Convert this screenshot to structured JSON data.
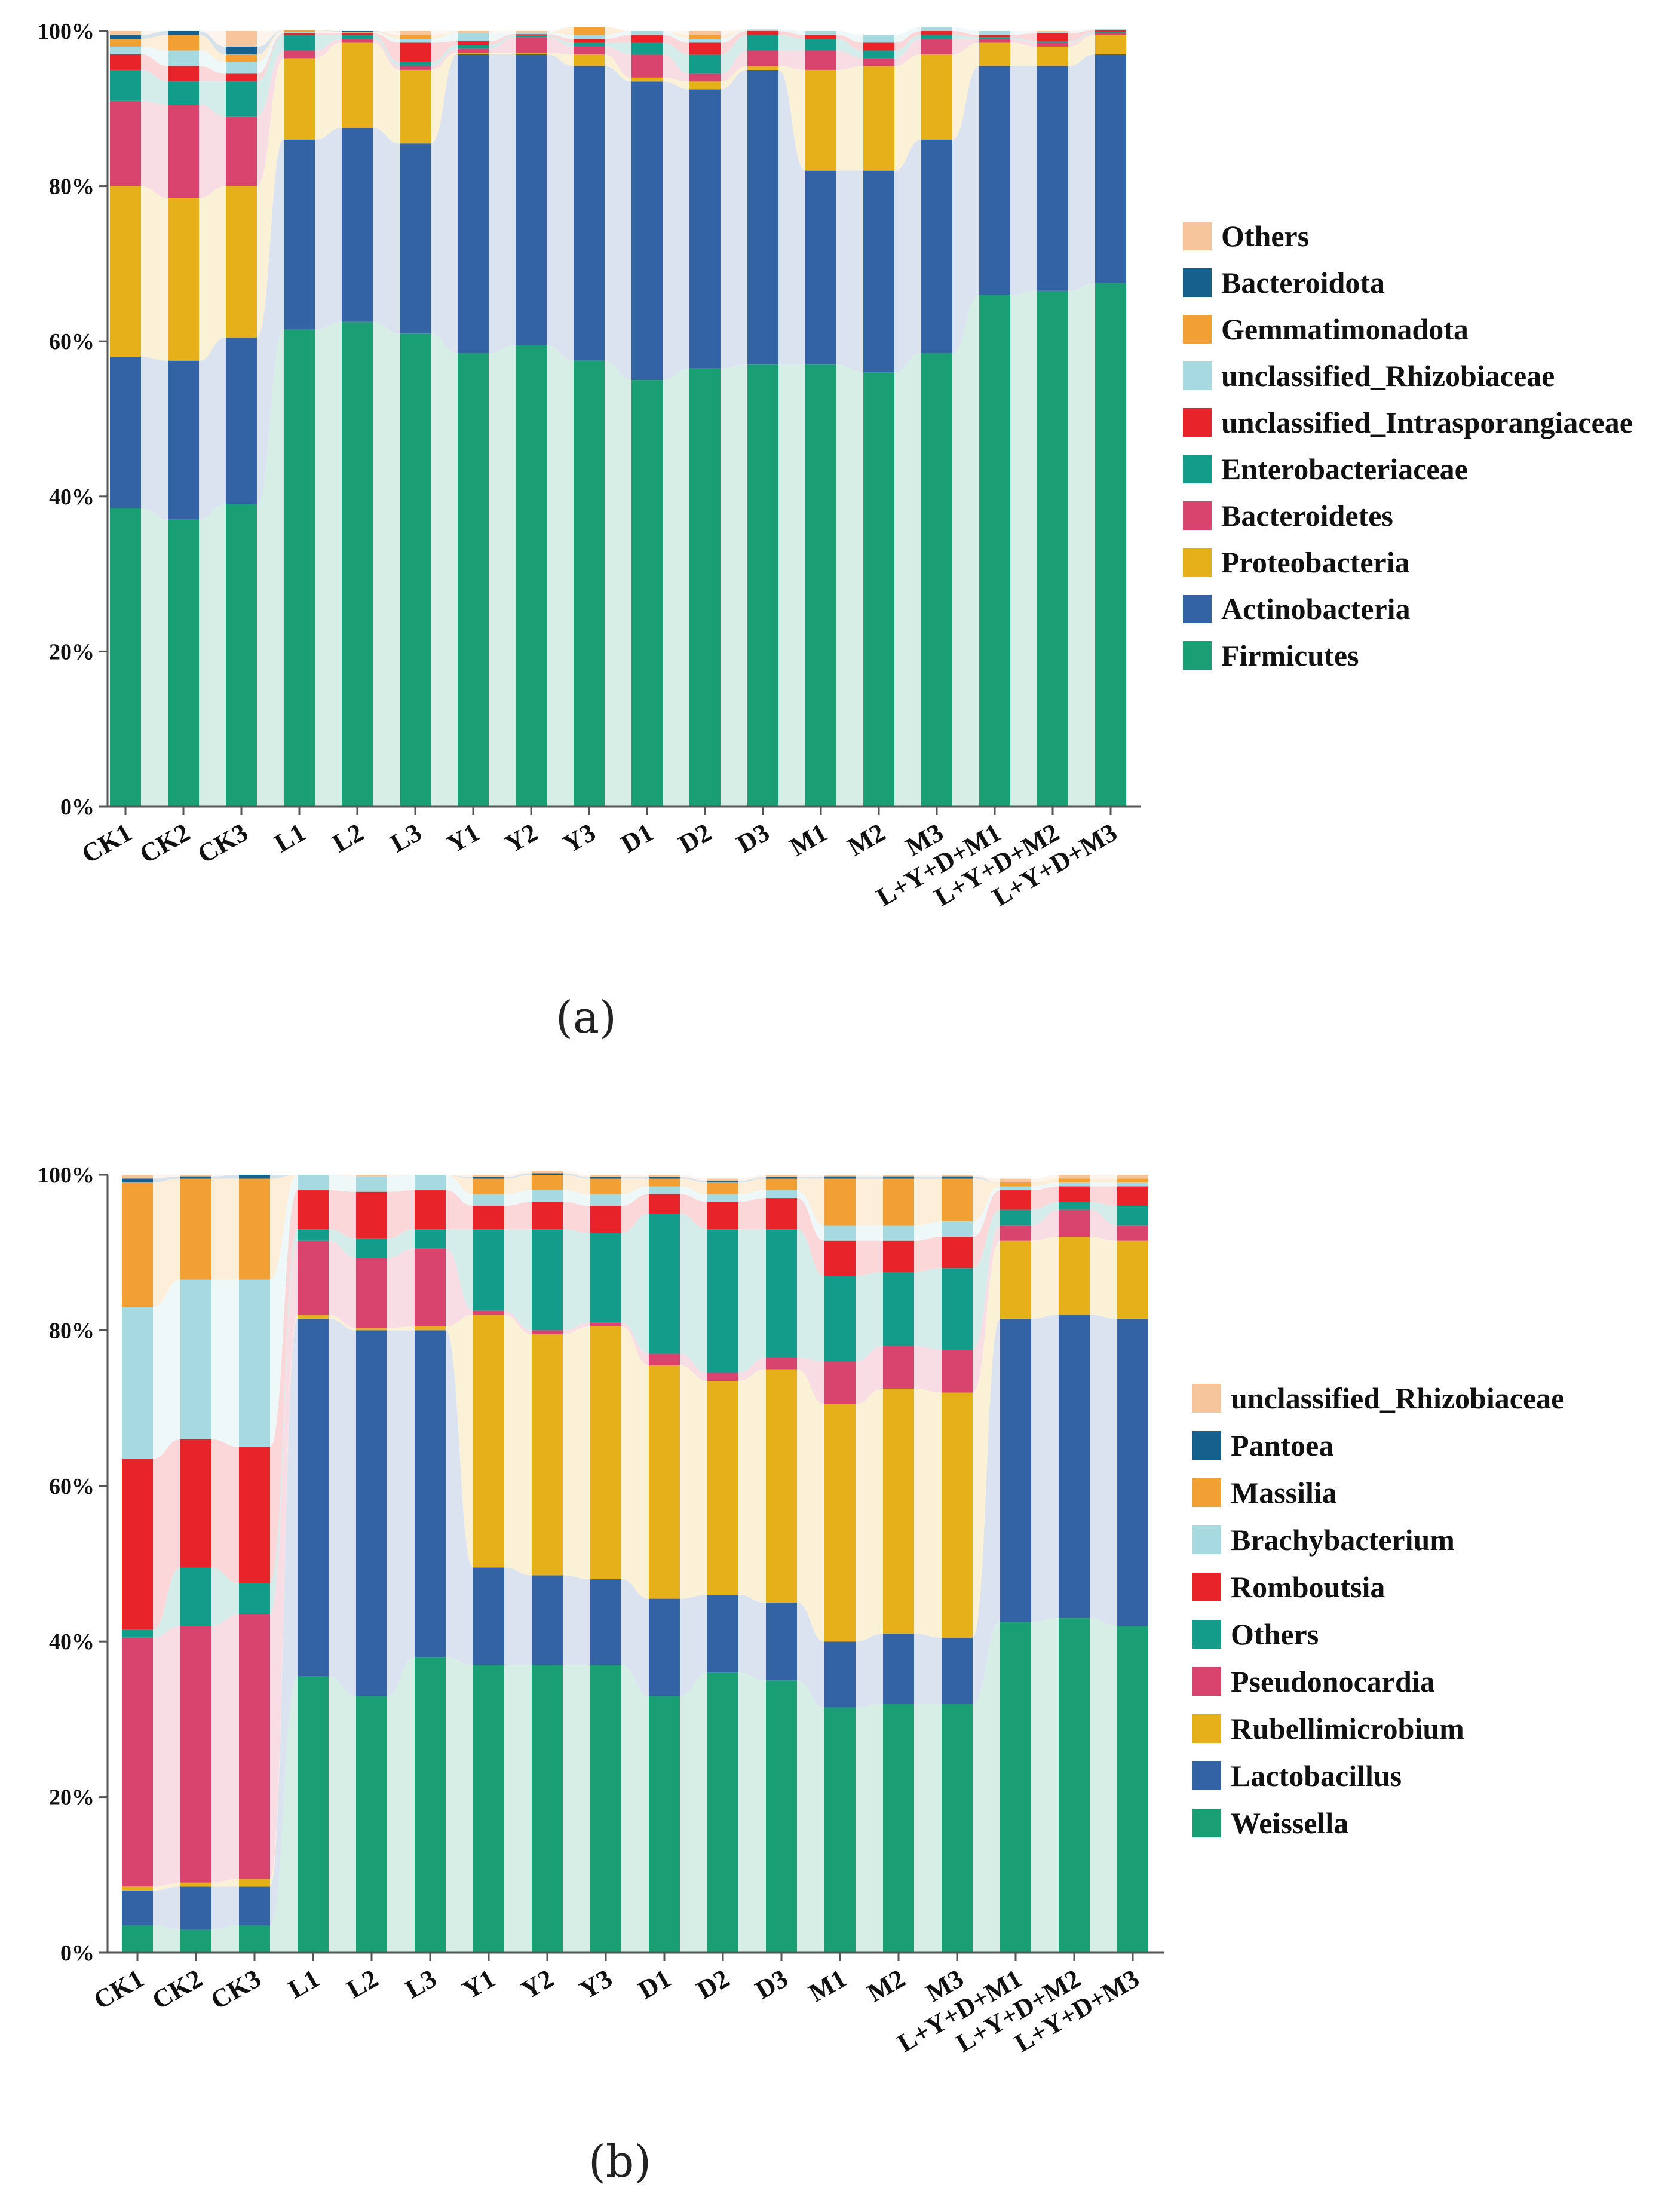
{
  "captions": [
    "(a)",
    "(b)"
  ],
  "chart_data": [
    {
      "type": "bar",
      "stacked": true,
      "title": "",
      "xlabel": "",
      "ylabel": "",
      "ylim": [
        0,
        100
      ],
      "yticks": [
        "0%",
        "20%",
        "40%",
        "60%",
        "80%",
        "100%"
      ],
      "categories": [
        "CK1",
        "CK2",
        "CK3",
        "L1",
        "L2",
        "L3",
        "Y1",
        "Y2",
        "Y3",
        "D1",
        "D2",
        "D3",
        "M1",
        "M2",
        "M3",
        "L+Y+D+M1",
        "L+Y+D+M2",
        "L+Y+D+M3"
      ],
      "legend_position": "right",
      "series": [
        {
          "name": "Firmicutes",
          "color": "#1a9e74",
          "values": [
            38.5,
            37.0,
            39.0,
            61.5,
            62.5,
            61.0,
            58.5,
            59.5,
            57.5,
            55.0,
            56.5,
            57.0,
            57.0,
            56.0,
            58.5,
            66.0,
            66.5,
            67.5
          ]
        },
        {
          "name": "Actinobacteria",
          "color": "#3463a5",
          "values": [
            19.5,
            20.5,
            21.5,
            24.5,
            25.0,
            24.5,
            38.5,
            37.5,
            38.0,
            38.5,
            36.0,
            38.0,
            25.0,
            26.0,
            27.5,
            29.5,
            29.0,
            29.5
          ]
        },
        {
          "name": "Proteobacteria",
          "color": "#e6b01a",
          "values": [
            22.0,
            21.0,
            19.5,
            10.5,
            11.0,
            9.5,
            0.2,
            0.2,
            1.5,
            0.5,
            1.0,
            0.5,
            13.0,
            13.5,
            11.0,
            3.0,
            2.5,
            2.5
          ]
        },
        {
          "name": "Bacteroidetes",
          "color": "#d9446f",
          "values": [
            11.0,
            12.0,
            9.0,
            1.0,
            0.5,
            0.5,
            0.5,
            2.0,
            1.0,
            3.0,
            1.0,
            2.0,
            2.5,
            1.0,
            2.0,
            0.5,
            0.5,
            0.2
          ]
        },
        {
          "name": "Enterobacteriaceae",
          "color": "#139c8a",
          "values": [
            4.0,
            3.0,
            4.5,
            2.0,
            0.5,
            0.5,
            0.5,
            0.2,
            0.5,
            1.5,
            2.5,
            2.0,
            1.5,
            1.0,
            0.5,
            0.2,
            0.2,
            0.2
          ]
        },
        {
          "name": "unclassified_Intrasporangiaceae",
          "color": "#e8232a",
          "values": [
            2.0,
            2.0,
            1.0,
            0.2,
            0.2,
            2.5,
            0.5,
            0.2,
            0.5,
            1.0,
            1.5,
            0.5,
            0.5,
            1.0,
            0.5,
            0.3,
            1.0,
            0.2
          ]
        },
        {
          "name": "unclassified_Rhizobiaceae",
          "color": "#a6d9e0",
          "values": [
            1.0,
            2.0,
            1.5,
            0.2,
            0.1,
            0.5,
            1.0,
            0.2,
            0.5,
            0.5,
            0.5,
            0.2,
            0.5,
            1.0,
            0.5,
            0.5,
            0.2,
            0.2
          ]
        },
        {
          "name": "Gemmatimonadota",
          "color": "#f2a033",
          "values": [
            1.0,
            2.0,
            1.0,
            0.2,
            0.1,
            0.5,
            0.0,
            0.0,
            1.0,
            0.0,
            0.5,
            0.0,
            0.0,
            0.0,
            0.0,
            0.0,
            0.0,
            0.0
          ]
        },
        {
          "name": "Bacteroidota",
          "color": "#16608e",
          "values": [
            0.5,
            0.5,
            1.0,
            0.0,
            0.1,
            0.0,
            0.0,
            0.0,
            0.0,
            0.0,
            0.0,
            0.0,
            0.0,
            0.0,
            0.0,
            0.0,
            0.0,
            0.0
          ]
        },
        {
          "name": "Others",
          "color": "#f6c59c",
          "values": [
            0.5,
            0.0,
            2.0,
            0.0,
            0.0,
            0.5,
            0.3,
            0.2,
            0.0,
            0.0,
            0.5,
            0.0,
            0.0,
            0.0,
            0.0,
            0.0,
            0.1,
            0.0
          ]
        }
      ]
    },
    {
      "type": "bar",
      "stacked": true,
      "title": "",
      "xlabel": "",
      "ylabel": "",
      "ylim": [
        0,
        100
      ],
      "yticks": [
        "0%",
        "20%",
        "40%",
        "60%",
        "80%",
        "100%"
      ],
      "categories": [
        "CK1",
        "CK2",
        "CK3",
        "L1",
        "L2",
        "L3",
        "Y1",
        "Y2",
        "Y3",
        "D1",
        "D2",
        "D3",
        "M1",
        "M2",
        "M3",
        "L+Y+D+M1",
        "L+Y+D+M2",
        "L+Y+D+M3"
      ],
      "legend_position": "right",
      "series": [
        {
          "name": "Weissella",
          "color": "#1a9e74",
          "values": [
            3.5,
            3.0,
            3.5,
            35.5,
            33.0,
            38.0,
            37.0,
            37.0,
            37.0,
            33.0,
            36.0,
            35.0,
            31.5,
            32.0,
            32.0,
            42.5,
            43.0,
            42.0
          ]
        },
        {
          "name": "Lactobacillus",
          "color": "#3463a5",
          "values": [
            4.5,
            5.5,
            5.0,
            46.0,
            47.0,
            42.0,
            12.5,
            11.5,
            11.0,
            12.5,
            10.0,
            10.0,
            8.5,
            9.0,
            8.5,
            39.0,
            39.0,
            39.5
          ]
        },
        {
          "name": "Rubellimicrobium",
          "color": "#e6b01a",
          "values": [
            0.5,
            0.5,
            1.0,
            0.5,
            0.3,
            0.5,
            32.5,
            31.0,
            32.5,
            30.0,
            27.5,
            30.0,
            30.5,
            31.5,
            31.5,
            10.0,
            10.0,
            10.0
          ]
        },
        {
          "name": "Pseudonocardia",
          "color": "#d9446f",
          "values": [
            32.0,
            33.0,
            34.0,
            9.5,
            9.0,
            10.0,
            0.5,
            0.5,
            0.5,
            1.5,
            1.0,
            1.5,
            5.5,
            5.5,
            5.5,
            2.0,
            3.5,
            2.0
          ]
        },
        {
          "name": "Others",
          "color": "#139c8a",
          "values": [
            1.0,
            7.5,
            4.0,
            1.5,
            2.5,
            2.5,
            10.5,
            13.0,
            11.5,
            18.0,
            18.5,
            16.5,
            11.0,
            9.5,
            10.5,
            2.0,
            1.0,
            2.5
          ]
        },
        {
          "name": "Romboutsia",
          "color": "#e8232a",
          "values": [
            22.0,
            16.5,
            17.5,
            5.0,
            6.0,
            5.0,
            3.0,
            3.5,
            3.5,
            2.5,
            3.5,
            4.0,
            4.5,
            4.0,
            4.0,
            2.5,
            2.0,
            2.5
          ]
        },
        {
          "name": "Brachybacterium",
          "color": "#a6d9e0",
          "values": [
            19.5,
            20.5,
            21.5,
            2.0,
            2.0,
            2.0,
            1.5,
            1.5,
            1.5,
            1.0,
            1.0,
            1.0,
            2.0,
            2.0,
            2.0,
            0.5,
            0.5,
            0.5
          ]
        },
        {
          "name": "Massilia",
          "color": "#f2a033",
          "values": [
            16.0,
            13.0,
            13.0,
            0.0,
            0.0,
            0.0,
            2.0,
            2.0,
            2.0,
            1.0,
            1.5,
            1.5,
            6.0,
            6.0,
            5.5,
            0.5,
            0.5,
            0.5
          ]
        },
        {
          "name": "Pantoea",
          "color": "#16608e",
          "values": [
            0.5,
            0.3,
            0.5,
            0.0,
            0.0,
            0.0,
            0.2,
            0.2,
            0.2,
            0.2,
            0.2,
            0.2,
            0.3,
            0.3,
            0.3,
            0.0,
            0.0,
            0.0
          ]
        },
        {
          "name": "unclassified_Rhizobiaceae",
          "color": "#f6c59c",
          "values": [
            0.5,
            0.2,
            0.0,
            0.0,
            0.2,
            0.0,
            0.3,
            0.3,
            0.3,
            0.3,
            0.3,
            0.3,
            0.2,
            0.2,
            0.2,
            0.5,
            0.5,
            0.5
          ]
        }
      ]
    }
  ]
}
